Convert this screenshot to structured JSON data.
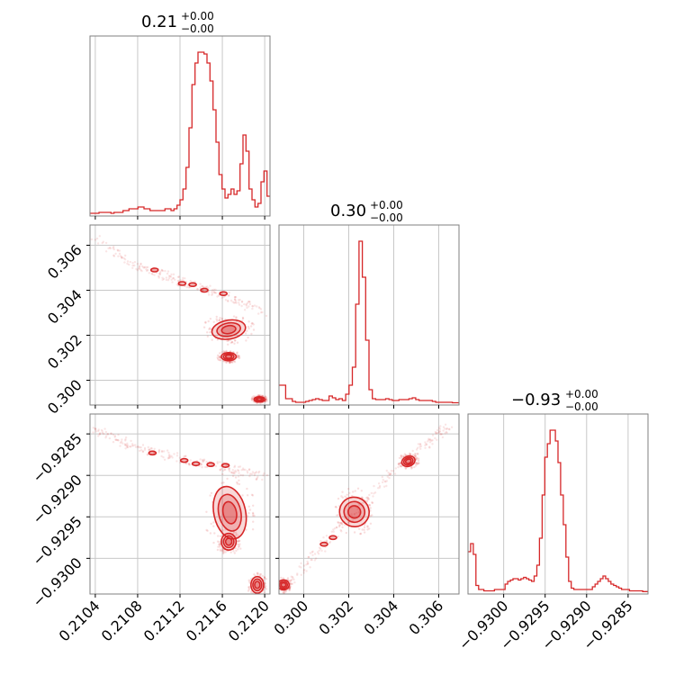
{
  "chart_data": {
    "type": "corner",
    "color": "#d62728",
    "parameters": [
      {
        "title": "0.21",
        "plus": "+0.00",
        "minus": "−0.00",
        "range": [
          0.21035,
          0.21205
        ],
        "ticks": [
          0.2104,
          0.2108,
          0.2112,
          0.2116,
          0.212
        ],
        "tick_labels": [
          "0.2104",
          "0.2108",
          "0.2112",
          "0.2116",
          "0.2120"
        ]
      },
      {
        "title": "0.30",
        "plus": "+0.00",
        "minus": "−0.00",
        "range": [
          0.2989,
          0.3069
        ],
        "ticks": [
          0.3,
          0.302,
          0.304,
          0.306
        ],
        "tick_labels": [
          "0.300",
          "0.302",
          "0.304",
          "0.306"
        ]
      },
      {
        "title": "−0.93",
        "plus": "+0.00",
        "minus": "−0.00",
        "range": [
          -0.93043,
          -0.92826
        ],
        "ticks": [
          -0.93,
          -0.9295,
          -0.929,
          -0.9285
        ],
        "tick_labels": [
          "−0.9300",
          "−0.9295",
          "−0.9290",
          "−0.9285"
        ]
      }
    ],
    "histograms": [
      {
        "edges": [
          0.21035,
          0.21205
        ],
        "values": [
          0.5,
          0.5,
          0.5,
          1,
          1,
          1,
          1,
          0.5,
          1,
          1,
          1,
          2,
          2,
          3,
          3,
          3,
          4,
          4,
          3,
          3,
          2,
          2,
          2,
          2,
          2,
          3,
          3,
          2,
          3,
          5,
          8,
          14,
          26,
          48,
          72,
          84,
          90,
          90,
          89,
          84,
          74,
          58,
          40,
          22,
          14,
          9,
          11,
          14,
          11,
          13,
          28,
          44,
          35,
          14,
          8,
          4,
          6,
          18,
          24,
          10
        ]
      },
      {
        "edges": [
          0.2989,
          0.3069
        ],
        "values": [
          20,
          20,
          5,
          5,
          2,
          1,
          1,
          1,
          2,
          3,
          4,
          5,
          4,
          3,
          3,
          8,
          6,
          4,
          5,
          3,
          10,
          20,
          40,
          110,
          180,
          140,
          70,
          15,
          5,
          4,
          4,
          4,
          5,
          4,
          3,
          3,
          4,
          4,
          4,
          5,
          6,
          4,
          3,
          3,
          3,
          3,
          2,
          1,
          1,
          1,
          1,
          1,
          0.5,
          0.5
        ]
      },
      {
        "edges": [
          -0.93043,
          -0.92826
        ],
        "values": [
          30,
          36,
          28,
          5,
          2,
          2,
          1,
          1,
          1,
          1,
          2,
          2,
          2,
          2,
          6,
          8,
          9,
          10,
          10,
          9,
          10,
          11,
          10,
          9,
          8,
          12,
          20,
          40,
          72,
          100,
          110,
          120,
          120,
          112,
          96,
          72,
          50,
          26,
          8,
          3,
          2,
          2,
          2,
          2,
          2,
          2,
          2,
          4,
          6,
          8,
          10,
          12,
          10,
          8,
          6,
          5,
          4,
          3,
          2,
          2,
          2,
          1,
          1,
          1,
          1,
          1,
          0.5,
          0.5
        ]
      }
    ],
    "pairs": [
      {
        "x": 0,
        "y": 1,
        "ridge": [
          [
            0.2104,
            0.30625
          ],
          [
            0.2108,
            0.3051
          ],
          [
            0.2112,
            0.3044
          ],
          [
            0.2116,
            0.3038
          ],
          [
            0.212,
            0.303
          ]
        ],
        "blobs": [
          {
            "cx": 0.21166,
            "cy": 0.30225,
            "rx": 0.00016,
            "ry": 0.00042,
            "rot": -10
          },
          {
            "cx": 0.21166,
            "cy": 0.30105,
            "rx": 7e-05,
            "ry": 0.00018,
            "rot": 0
          },
          {
            "cx": 0.21195,
            "cy": 0.29915,
            "rx": 5e-05,
            "ry": 0.00012,
            "rot": 0
          }
        ],
        "islands": [
          [
            0.21096,
            0.3049
          ],
          [
            0.21122,
            0.3043
          ],
          [
            0.21132,
            0.30425
          ],
          [
            0.21143,
            0.304
          ],
          [
            0.21161,
            0.30385
          ]
        ]
      },
      {
        "x": 0,
        "y": 2,
        "ridge": [
          [
            0.2104,
            -0.92845
          ],
          [
            0.2108,
            -0.92867
          ],
          [
            0.2112,
            -0.9288
          ],
          [
            0.2116,
            -0.9289
          ],
          [
            0.212,
            -0.92902
          ]
        ],
        "blobs": [
          {
            "cx": 0.21167,
            "cy": -0.92945,
            "rx": 0.00015,
            "ry": 0.00032,
            "rot": -12
          },
          {
            "cx": 0.21166,
            "cy": -0.9298,
            "rx": 7e-05,
            "ry": 0.0001,
            "rot": 0
          },
          {
            "cx": 0.21193,
            "cy": -0.93032,
            "rx": 6e-05,
            "ry": 0.0001,
            "rot": 0
          }
        ],
        "islands": [
          [
            0.21094,
            -0.92873
          ],
          [
            0.21124,
            -0.92882
          ],
          [
            0.21135,
            -0.92886
          ],
          [
            0.21149,
            -0.92887
          ],
          [
            0.21163,
            -0.92888
          ]
        ]
      },
      {
        "x": 1,
        "y": 2,
        "ridge": [
          [
            0.299,
            -0.9304
          ],
          [
            0.301,
            -0.9298
          ],
          [
            0.303,
            -0.9292
          ],
          [
            0.305,
            -0.9287
          ],
          [
            0.3065,
            -0.9284
          ]
        ],
        "blobs": [
          {
            "cx": 0.30225,
            "cy": -0.92944,
            "rx": 0.00065,
            "ry": 0.00018,
            "rot": -50
          },
          {
            "cx": 0.30465,
            "cy": -0.92883,
            "rx": 0.0003,
            "ry": 6e-05,
            "rot": -20
          },
          {
            "cx": 0.2991,
            "cy": -0.93032,
            "rx": 0.00025,
            "ry": 6e-05,
            "rot": 0
          }
        ],
        "islands": [
          [
            0.3009,
            -0.92983
          ],
          [
            0.3013,
            -0.92975
          ]
        ]
      }
    ]
  }
}
